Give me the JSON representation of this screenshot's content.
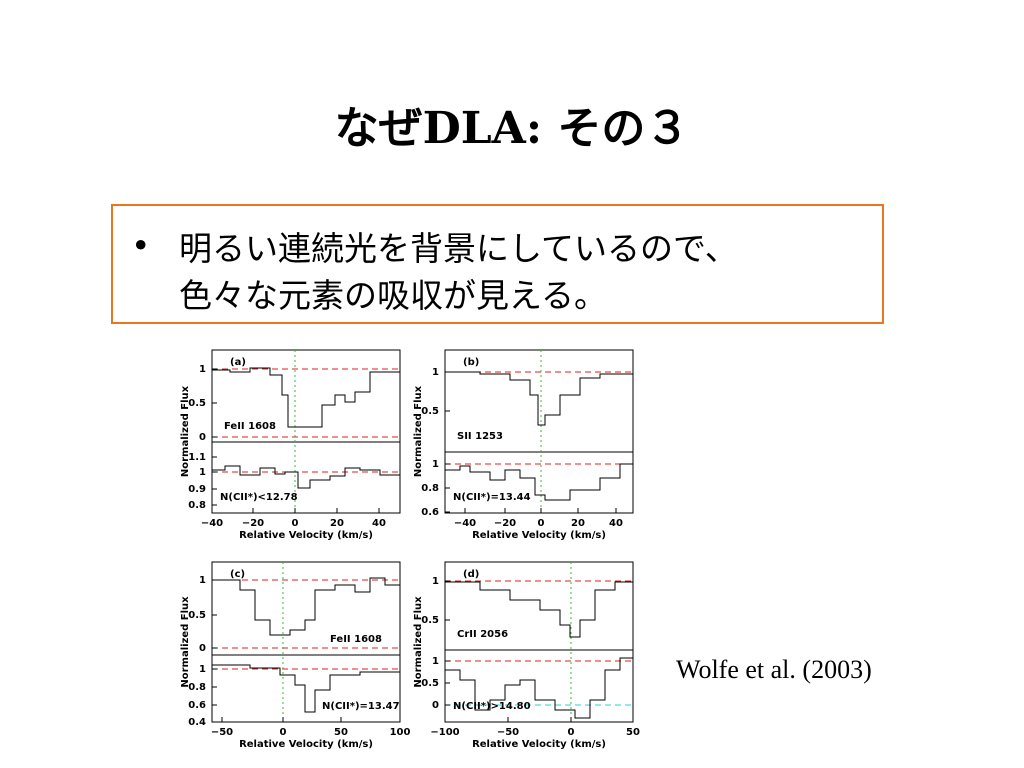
{
  "slide": {
    "title": "なぜDLA: その３",
    "bullet": {
      "marker": "•",
      "lines": [
        "明るい連続光を背景にしているので、",
        "色々な元素の吸収が見える。"
      ]
    },
    "citation": "Wolfe et al. (2003)"
  },
  "figure": {
    "panels": [
      {
        "id": "(a)",
        "species": "FeII 1608",
        "note": "N(CII*)<12.78",
        "ylabel": "Normalized Flux",
        "xlabel": "Relative Velocity (km/s)",
        "upper_yticks": [
          "1",
          "0.5",
          "0"
        ],
        "lower_yticks": [
          "1.1",
          "1",
          "0.9",
          "0.8"
        ],
        "xticks": [
          "−40",
          "−20",
          "0",
          "20",
          "40"
        ]
      },
      {
        "id": "(b)",
        "species": "SII 1253",
        "note": "N(CII*)=13.44",
        "ylabel": "Normalized Flux",
        "xlabel": "Relative Velocity (km/s)",
        "upper_yticks": [
          "1",
          "0.5"
        ],
        "lower_yticks": [
          "1",
          "0.8",
          "0.6"
        ],
        "xticks": [
          "−40",
          "−20",
          "0",
          "20",
          "40"
        ]
      },
      {
        "id": "(c)",
        "species": "FeII 1608",
        "note": "N(CII*)=13.47",
        "ylabel": "Normalized Flux",
        "xlabel": "Relative Velocity (km/s)",
        "upper_yticks": [
          "1",
          "0.5",
          "0"
        ],
        "lower_yticks": [
          "1",
          "0.8",
          "0.6",
          "0.4"
        ],
        "xticks": [
          "−50",
          "0",
          "50",
          "100"
        ]
      },
      {
        "id": "(d)",
        "species": "CrII 2056",
        "note": "N(CII*)>14.80",
        "ylabel": "Normalized Flux",
        "xlabel": "Relative Velocity (km/s)",
        "upper_yticks": [
          "1",
          "0.5"
        ],
        "lower_yticks": [
          "1",
          "0.5",
          "0"
        ],
        "xticks": [
          "−100",
          "−50",
          "0",
          "50"
        ]
      }
    ]
  }
}
